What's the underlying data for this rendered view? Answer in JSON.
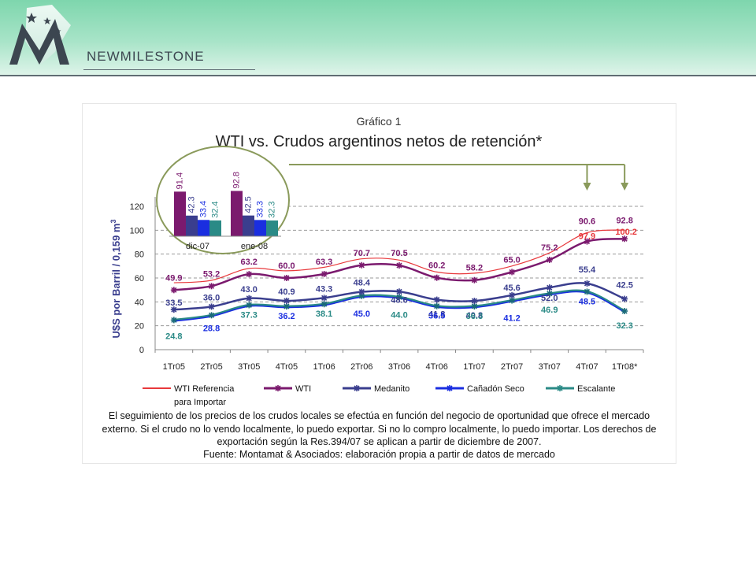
{
  "brand": {
    "name": "NEWMILESTONE",
    "colors": {
      "header_top": "#7ed6ad",
      "header_bottom": "#dff4ea",
      "dark": "#3c4650"
    }
  },
  "chart_data": {
    "type": "line",
    "figure_label": "Gráfico 1",
    "title": "WTI vs. Crudos argentinos netos de retención*",
    "ylabel": "U$S por Barril / 0,159 m",
    "ylabel_superscript": "3",
    "ylim": [
      0,
      120
    ],
    "yticks": [
      "0",
      "20",
      "40",
      "60",
      "80",
      "100",
      "120"
    ],
    "grid": "dashed horizontal",
    "legend_position": "bottom",
    "categories": [
      "1Tr05",
      "2Tr05",
      "3Tr05",
      "4Tr05",
      "1Tr06",
      "2Tr06",
      "3Tr06",
      "4Tr06",
      "1Tr07",
      "2Tr07",
      "3Tr07",
      "4Tr07",
      "1Tr08*"
    ],
    "series": [
      {
        "name": "WTI Referencia",
        "name_line2": "para Importar",
        "color": "#e8393c",
        "marker": "none",
        "values": [
          null,
          null,
          null,
          null,
          null,
          null,
          null,
          null,
          null,
          null,
          null,
          97.9,
          100.2
        ],
        "curve": [
          56,
          58,
          68,
          66,
          69,
          76,
          75,
          65,
          64,
          70,
          81,
          97.9,
          100.2
        ]
      },
      {
        "name": "WTI",
        "color": "#7b1a6e",
        "marker": "star",
        "values": [
          49.9,
          53.2,
          63.2,
          60.0,
          63.3,
          70.7,
          70.5,
          60.2,
          58.2,
          65.0,
          75.2,
          90.6,
          92.8
        ]
      },
      {
        "name": "Medanito",
        "color": "#3a3e8e",
        "marker": "star",
        "values": [
          33.5,
          36.0,
          43.0,
          40.9,
          43.3,
          48.4,
          48.6,
          41.8,
          40.8,
          45.6,
          52.0,
          55.4,
          42.5
        ]
      },
      {
        "name": "Cañadón Seco",
        "color": "#1a2ee0",
        "marker": "star",
        "values": [
          null,
          28.8,
          null,
          36.2,
          null,
          45.0,
          44.0,
          36.5,
          36.3,
          41.2,
          null,
          48.5,
          null
        ]
      },
      {
        "name": "Escalante",
        "color": "#2a8a86",
        "marker": "star",
        "values": [
          24.8,
          28.8,
          37.3,
          36.2,
          38.1,
          45.0,
          44.0,
          36.5,
          36.3,
          41.2,
          46.9,
          48.5,
          32.3
        ]
      }
    ],
    "inset": {
      "categories": [
        "dic-07",
        "ene-08"
      ],
      "groups": [
        {
          "category": "dic-07",
          "values": [
            91.4,
            42.3,
            33.4,
            32.4
          ]
        },
        {
          "category": "ene-08",
          "values": [
            92.8,
            42.5,
            33.3,
            32.3
          ]
        }
      ],
      "colors": [
        "#7b1a6e",
        "#3a3e8e",
        "#1a2ee0",
        "#2a8a86"
      ]
    }
  },
  "footnote": {
    "lines": [
      "El seguimiento de los precios de los crudos locales se efectúa en función del negocio de oportunidad que ofrece el mercado",
      "externo. Si el crudo no lo vendo localmente, lo puedo exportar. Si no lo compro localmente, lo puedo importar. Los derechos de",
      "exportación según la Res.394/07 se aplican a partir de diciembre de 2007.",
      "Fuente: Montamat & Asociados: elaboración propia a partir de datos de mercado"
    ]
  }
}
